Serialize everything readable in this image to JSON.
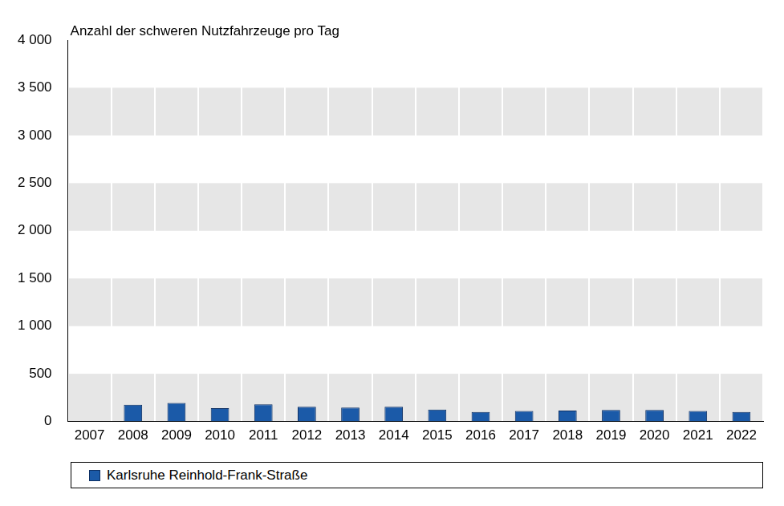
{
  "chart_data": {
    "type": "bar",
    "title": "Anzahl der schweren Nutzfahrzeuge pro Tag",
    "categories": [
      "2007",
      "2008",
      "2009",
      "2010",
      "2011",
      "2012",
      "2013",
      "2014",
      "2015",
      "2016",
      "2017",
      "2018",
      "2019",
      "2020",
      "2021",
      "2022"
    ],
    "series": [
      {
        "name": "Karlsruhe Reinhold-Frank-Straße",
        "color": "#1b5aa8",
        "values": [
          null,
          175,
          195,
          140,
          180,
          155,
          145,
          155,
          125,
          100,
          110,
          115,
          120,
          120,
          110,
          100
        ]
      }
    ],
    "ylim": [
      0,
      4000
    ],
    "yticks": [
      0,
      500,
      {
        "value": 1000,
        "label": "1 000"
      },
      {
        "value": 1500,
        "label": "1 500"
      },
      {
        "value": 2000,
        "label": "2 000"
      },
      {
        "value": 2500,
        "label": "2 500"
      },
      {
        "value": 3000,
        "label": "3 000"
      },
      {
        "value": 3500,
        "label": "3 500"
      },
      {
        "value": 4000,
        "label": "4 000"
      }
    ],
    "grid": true,
    "legend": "bottom"
  }
}
